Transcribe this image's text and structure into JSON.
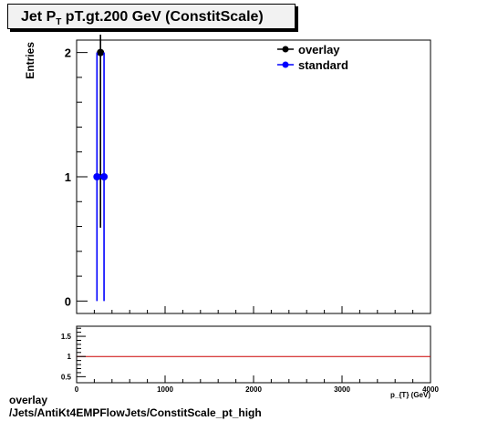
{
  "title": {
    "prefix": "Jet P",
    "sub": "T",
    "rest": " pT.gt.200 GeV (ConstitScale)"
  },
  "footer": {
    "line1": "overlay",
    "line2": "/Jets/AntiKt4EMPFlowJets/ConstitScale_pt_high"
  },
  "chart_data": [
    {
      "type": "scatter",
      "ylabel": "Entries",
      "xlabel": "p_{T} (GeV)",
      "xlim": [
        0,
        4000
      ],
      "ylim": [
        -0.1,
        2.1
      ],
      "x_ticks": [
        0,
        1000,
        2000,
        3000,
        4000
      ],
      "y_ticks": [
        0,
        1,
        2
      ],
      "legend": "top-right",
      "series": [
        {
          "name": "overlay",
          "color": "#000000",
          "points": [
            {
              "x": 270,
              "y": 2,
              "yerr": 1.41
            }
          ]
        },
        {
          "name": "standard",
          "color": "#0000ff",
          "points": [
            {
              "x": 230,
              "y": 1,
              "yerr": 1
            },
            {
              "x": 310,
              "y": 1,
              "yerr": 1
            }
          ]
        }
      ]
    },
    {
      "type": "line",
      "xlim": [
        0,
        4000
      ],
      "ylim": [
        0.35,
        1.75
      ],
      "x_ticks": [
        0,
        1000,
        2000,
        3000,
        4000
      ],
      "y_ticks": [
        0.5,
        1,
        1.5
      ],
      "reference_line": {
        "y": 1,
        "color": "#cc0000"
      }
    }
  ]
}
